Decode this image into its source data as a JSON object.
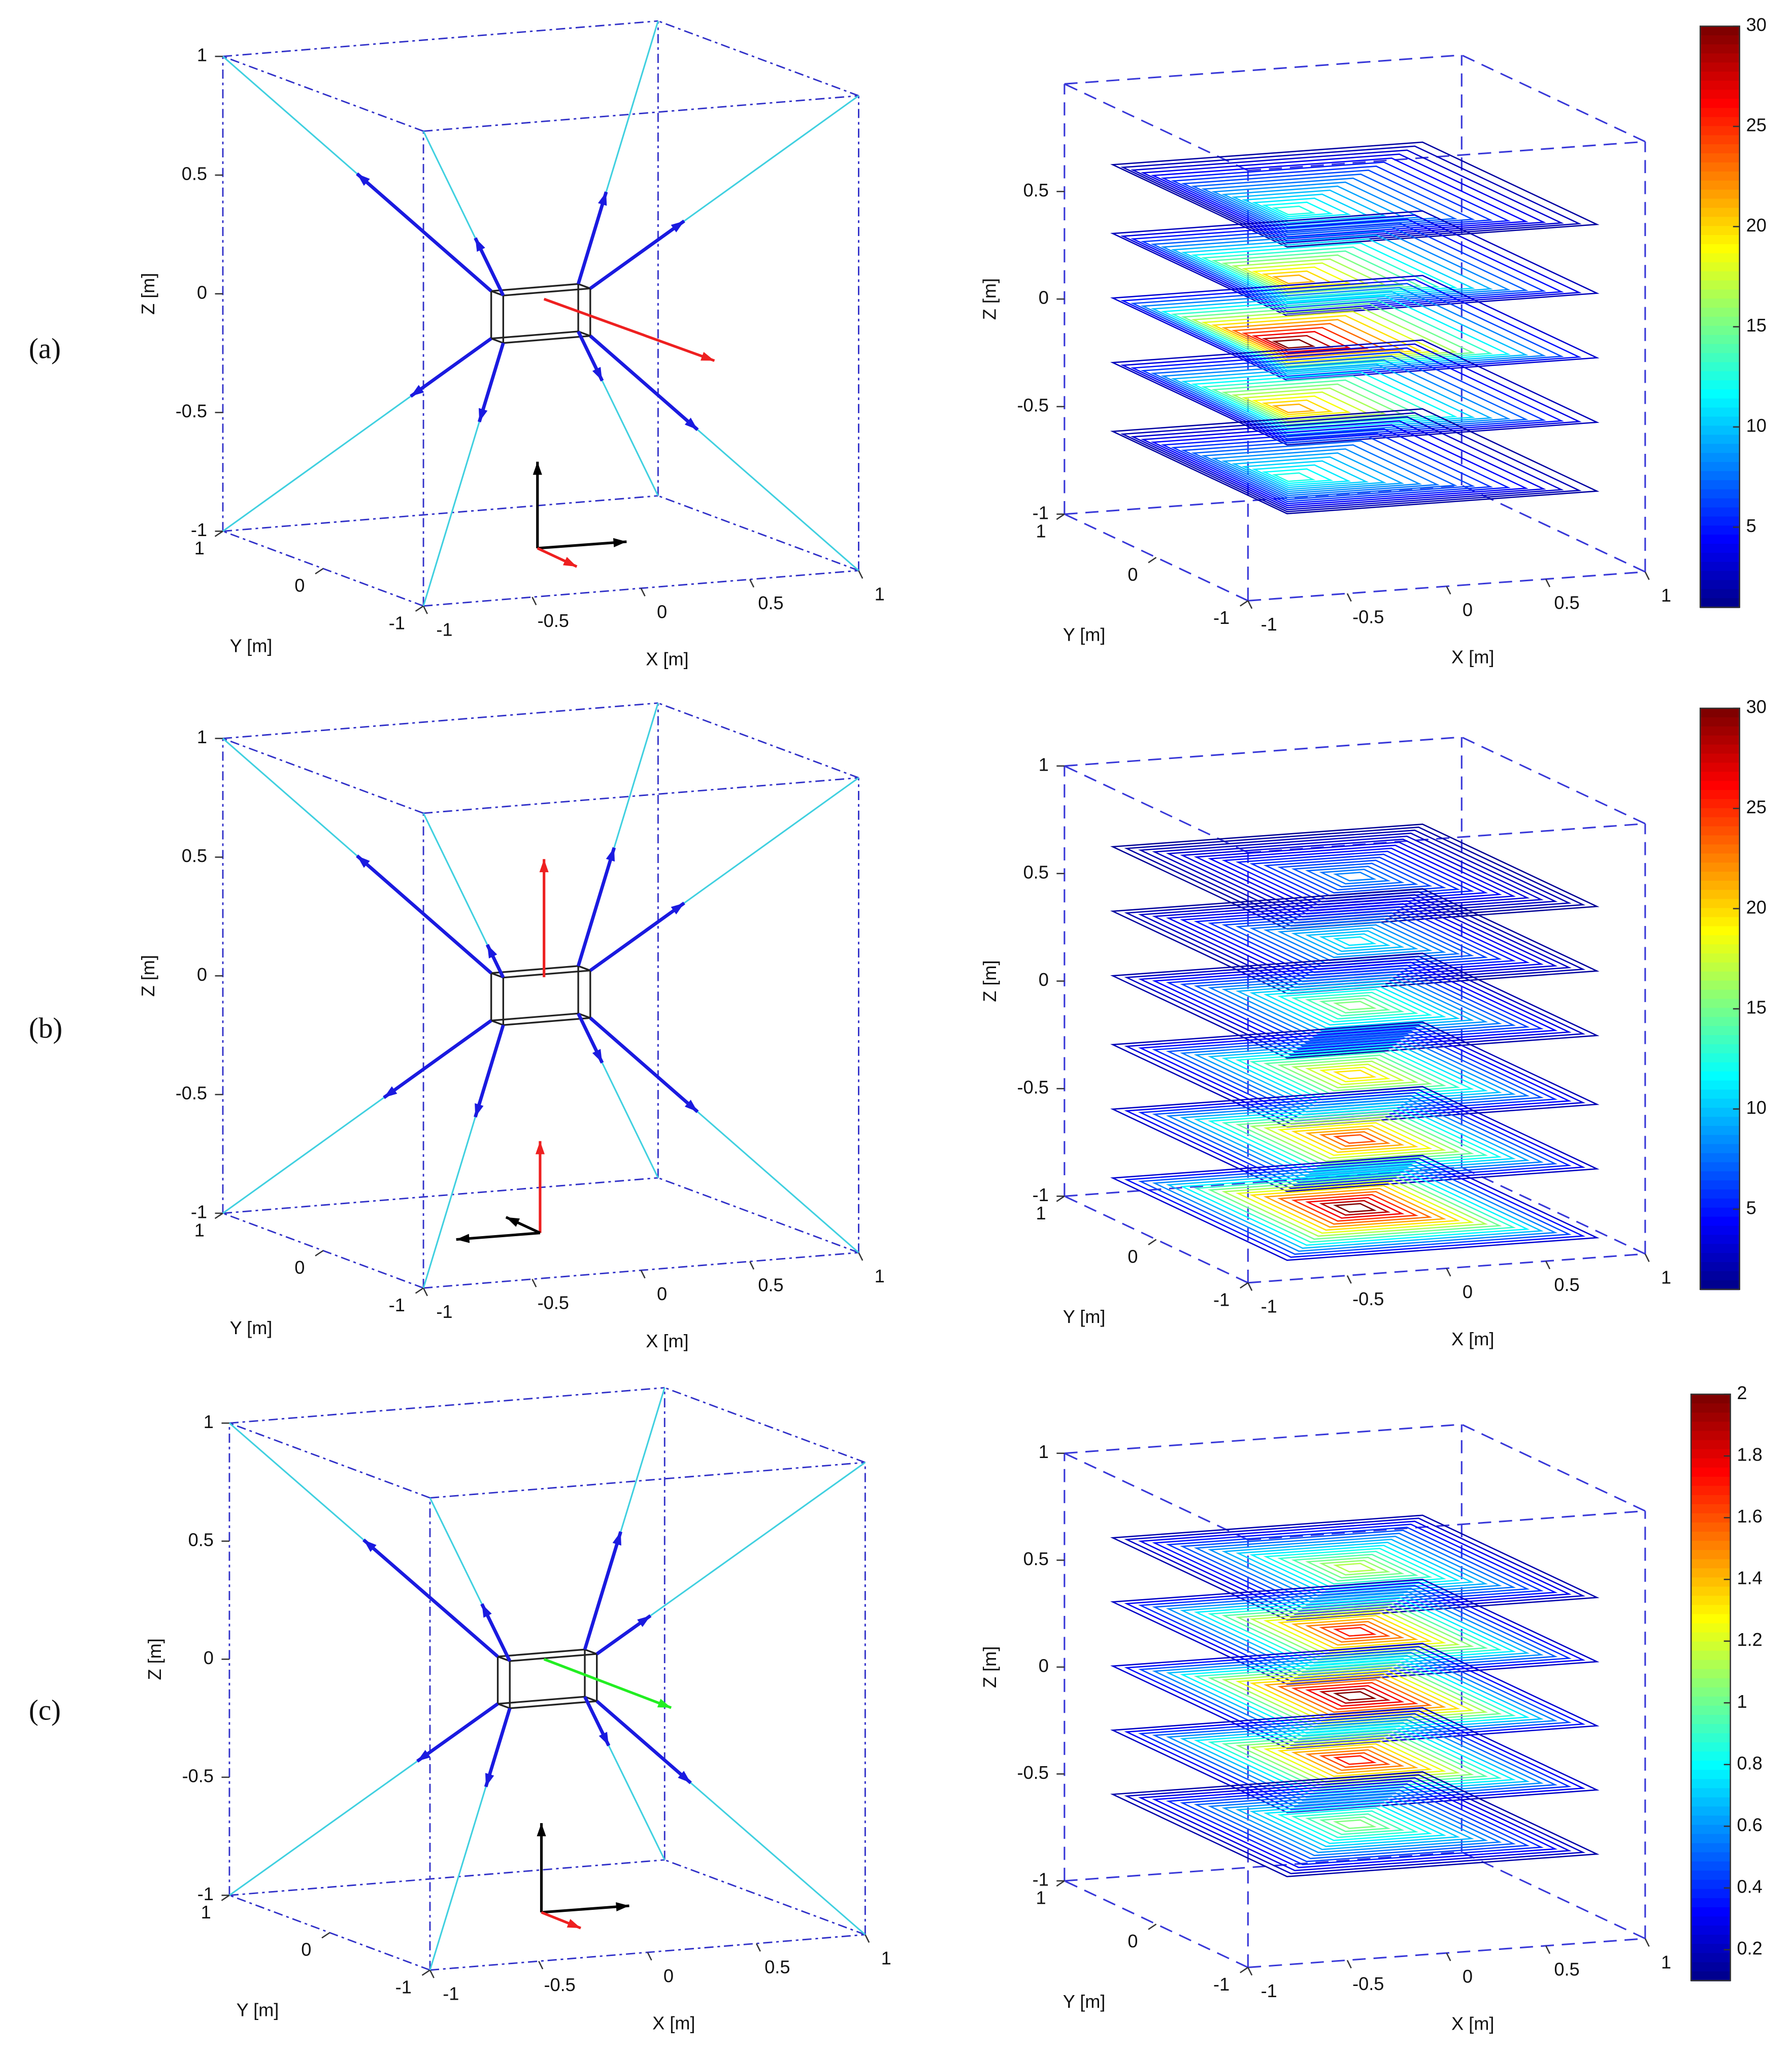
{
  "panel_labels": [
    "(a)",
    "(b)",
    "(c)"
  ],
  "chart_data": [
    {
      "type": "wireframe3d",
      "xlabel": "X [m]",
      "ylabel": "Y [m]",
      "zlabel": "Z [m]",
      "xlim": [
        -1,
        1
      ],
      "ylim": [
        -1,
        1
      ],
      "zlim": [
        -1,
        1
      ],
      "xticks": [
        -1,
        -0.5,
        0,
        0.5,
        1
      ],
      "yticks": [
        -1,
        0,
        1
      ],
      "zticks": [
        -1,
        -0.5,
        0,
        0.5,
        1
      ]
    },
    {
      "type": "contour3d",
      "xlabel": "X [m]",
      "ylabel": "Y [m]",
      "zlabel": "Z [m]",
      "xlim": [
        -1,
        1
      ],
      "ylim": [
        -1,
        1
      ],
      "zlim": [
        -1,
        1
      ],
      "xticks": [
        -1,
        -0.5,
        0,
        0.5,
        1
      ],
      "yticks": [
        -1,
        0,
        1
      ],
      "zticks": [
        -1,
        -0.5,
        0,
        0.5
      ],
      "colorbar": {
        "lim": [
          1,
          30
        ],
        "ticks": [
          5,
          10,
          15,
          20,
          25,
          30
        ]
      }
    },
    {
      "type": "wireframe3d",
      "xlabel": "X [m]",
      "ylabel": "Y [m]",
      "zlabel": "Z [m]",
      "xlim": [
        -1,
        1
      ],
      "ylim": [
        -1,
        1
      ],
      "zlim": [
        -1,
        1
      ],
      "xticks": [
        -1,
        -0.5,
        0,
        0.5,
        1
      ],
      "yticks": [
        -1,
        0,
        1
      ],
      "zticks": [
        -1,
        -0.5,
        0,
        0.5,
        1
      ]
    },
    {
      "type": "contour3d",
      "xlabel": "X [m]",
      "ylabel": "Y [m]",
      "zlabel": "Z [m]",
      "xlim": [
        -1,
        1
      ],
      "ylim": [
        -1,
        1
      ],
      "zlim": [
        -1,
        1
      ],
      "xticks": [
        -1,
        -0.5,
        0,
        0.5,
        1
      ],
      "yticks": [
        -1,
        0,
        1
      ],
      "zticks": [
        -1,
        -0.5,
        0,
        0.5,
        1
      ],
      "colorbar": {
        "lim": [
          1,
          30
        ],
        "ticks": [
          5,
          10,
          15,
          20,
          25,
          30
        ]
      }
    },
    {
      "type": "wireframe3d",
      "xlabel": "X [m]",
      "ylabel": "Y [m]",
      "zlabel": "Z [m]",
      "xlim": [
        -1,
        1
      ],
      "ylim": [
        -1,
        1
      ],
      "zlim": [
        -1,
        1
      ],
      "xticks": [
        -1,
        -0.5,
        0,
        0.5,
        1
      ],
      "yticks": [
        -1,
        0,
        1
      ],
      "zticks": [
        -1,
        -0.5,
        0,
        0.5,
        1
      ]
    },
    {
      "type": "contour3d",
      "xlabel": "X [m]",
      "ylabel": "Y [m]",
      "zlabel": "Z [m]",
      "xlim": [
        -1,
        1
      ],
      "ylim": [
        -1,
        1
      ],
      "zlim": [
        -1,
        1
      ],
      "xticks": [
        -1,
        -0.5,
        0,
        0.5,
        1
      ],
      "yticks": [
        -1,
        0,
        1
      ],
      "zticks": [
        -1,
        -0.5,
        0,
        0.5,
        1
      ],
      "colorbar": {
        "lim": [
          0.1,
          2
        ],
        "ticks": [
          0.2,
          0.4,
          0.6,
          0.8,
          1,
          1.2,
          1.4,
          1.6,
          1.8,
          2
        ]
      }
    }
  ]
}
